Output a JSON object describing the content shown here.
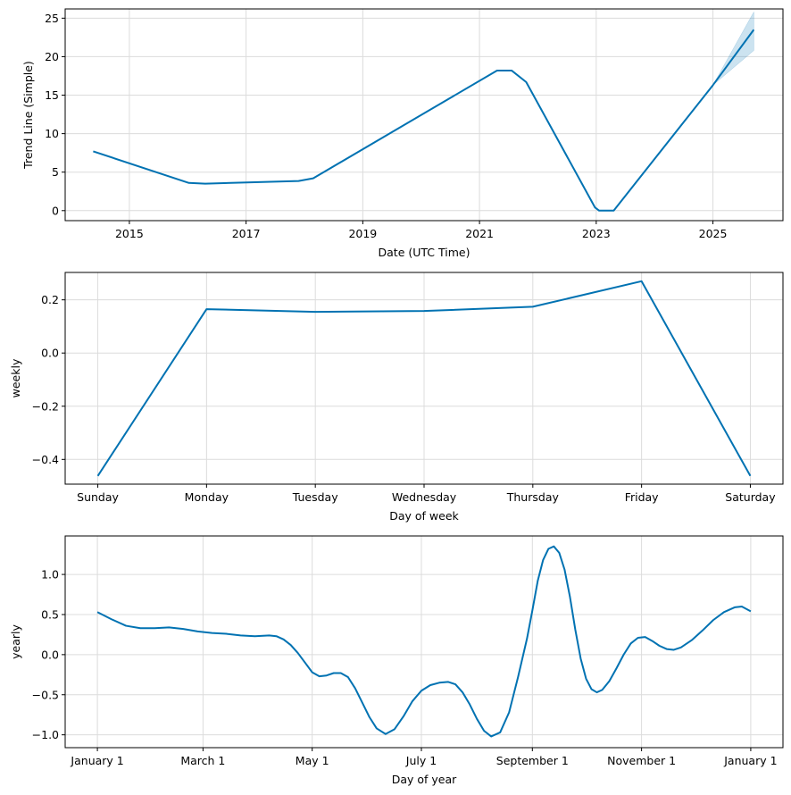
{
  "chart_data": [
    {
      "type": "line",
      "id": "trend",
      "title": "",
      "xlabel": "Date (UTC Time)",
      "ylabel": "Trend Line (Simple)",
      "xlim": [
        2013.9,
        2026.2
      ],
      "ylim": [
        -1.3,
        26.2
      ],
      "xticks": [
        2015,
        2017,
        2019,
        2021,
        2023,
        2025
      ],
      "xtick_labels": [
        "2015",
        "2017",
        "2019",
        "2021",
        "2023",
        "2025"
      ],
      "yticks": [
        0,
        5,
        10,
        15,
        20,
        25
      ],
      "ytick_labels": [
        "0",
        "5",
        "10",
        "15",
        "20",
        "25"
      ],
      "grid": true,
      "color": "#0072b2",
      "x": [
        2014.38,
        2016.02,
        2016.3,
        2017.9,
        2018.15,
        2021.3,
        2021.55,
        2021.8,
        2022.98,
        2023.05,
        2023.3,
        2025.0,
        2025.7
      ],
      "y": [
        7.7,
        3.6,
        3.5,
        3.85,
        4.2,
        18.2,
        18.2,
        16.7,
        0.4,
        0.0,
        0.0,
        16.3,
        23.5
      ],
      "uncertainty": {
        "x": [
          2025.0,
          2025.7
        ],
        "lower": [
          16.3,
          20.8
        ],
        "upper": [
          16.3,
          25.8
        ]
      }
    },
    {
      "type": "line",
      "id": "weekly",
      "title": "",
      "xlabel": "Day of week",
      "ylabel": "weekly",
      "categories": [
        "Sunday",
        "Monday",
        "Tuesday",
        "Wednesday",
        "Thursday",
        "Friday",
        "Saturday"
      ],
      "values": [
        -0.462,
        0.165,
        0.155,
        0.158,
        0.174,
        0.27,
        -0.462
      ],
      "xlim": [
        -0.3,
        6.3
      ],
      "ylim": [
        -0.493,
        0.303
      ],
      "yticks": [
        -0.4,
        -0.2,
        0.0,
        0.2
      ],
      "ytick_labels": [
        "−0.4",
        "−0.2",
        "0.0",
        "0.2"
      ],
      "grid": true,
      "color": "#0072b2"
    },
    {
      "type": "line",
      "id": "yearly",
      "title": "",
      "xlabel": "Day of year",
      "ylabel": "yearly",
      "xlim": [
        -18,
        383
      ],
      "ylim": [
        -1.16,
        1.48
      ],
      "xticks": [
        0,
        59,
        120,
        181,
        243,
        304,
        365
      ],
      "xtick_labels": [
        "January 1",
        "March 1",
        "May 1",
        "July 1",
        "September 1",
        "November 1",
        "January 1"
      ],
      "yticks": [
        -1.0,
        -0.5,
        0.0,
        0.5,
        1.0
      ],
      "ytick_labels": [
        "−1.0",
        "−0.5",
        "0.0",
        "0.5",
        "1.0"
      ],
      "grid": true,
      "color": "#0072b2",
      "x": [
        0,
        8,
        16,
        24,
        32,
        40,
        48,
        56,
        64,
        72,
        80,
        88,
        96,
        100,
        104,
        108,
        112,
        116,
        120,
        124,
        128,
        132,
        136,
        140,
        144,
        148,
        152,
        156,
        161,
        166,
        171,
        176,
        181,
        186,
        191,
        196,
        200,
        204,
        208,
        212,
        216,
        220,
        225,
        230,
        235,
        240,
        243,
        246,
        249,
        252,
        255,
        258,
        261,
        264,
        267,
        270,
        273,
        276,
        279,
        282,
        286,
        290,
        294,
        298,
        302,
        306,
        310,
        314,
        318,
        322,
        326,
        332,
        338,
        344,
        350,
        356,
        360,
        365
      ],
      "y": [
        0.53,
        0.44,
        0.36,
        0.33,
        0.33,
        0.34,
        0.32,
        0.29,
        0.27,
        0.26,
        0.24,
        0.23,
        0.24,
        0.23,
        0.19,
        0.12,
        0.02,
        -0.1,
        -0.22,
        -0.27,
        -0.26,
        -0.23,
        -0.23,
        -0.28,
        -0.42,
        -0.6,
        -0.78,
        -0.92,
        -0.99,
        -0.93,
        -0.77,
        -0.58,
        -0.45,
        -0.38,
        -0.35,
        -0.34,
        -0.37,
        -0.47,
        -0.62,
        -0.8,
        -0.95,
        -1.02,
        -0.97,
        -0.72,
        -0.28,
        0.2,
        0.55,
        0.92,
        1.18,
        1.32,
        1.35,
        1.27,
        1.06,
        0.72,
        0.31,
        -0.05,
        -0.3,
        -0.43,
        -0.47,
        -0.44,
        -0.33,
        -0.17,
        0.0,
        0.14,
        0.21,
        0.22,
        0.17,
        0.11,
        0.07,
        0.06,
        0.09,
        0.18,
        0.3,
        0.43,
        0.53,
        0.59,
        0.6,
        0.54
      ]
    }
  ]
}
